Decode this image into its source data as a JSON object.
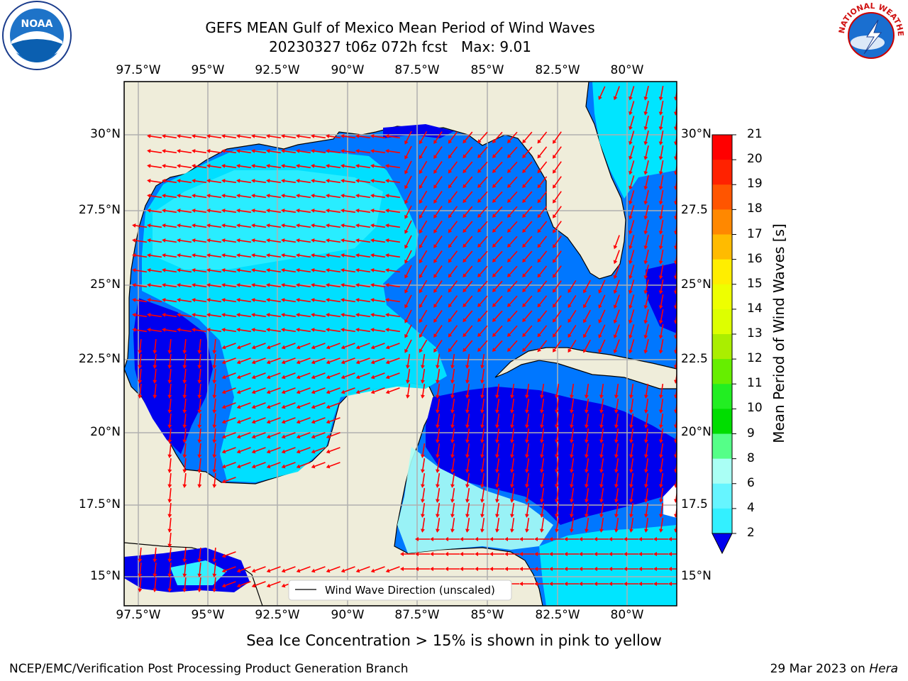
{
  "title_line1": "GEFS MEAN Gulf of Mexico Mean Period of Wind Waves",
  "title_line2": "20230327 t06z 072h fcst   Max: 9.01",
  "lon_ticks": [
    "97.5°W",
    "95°W",
    "92.5°W",
    "90°W",
    "87.5°W",
    "85°W",
    "82.5°W",
    "80°W"
  ],
  "lat_ticks_left": [
    "30°N",
    "27.5°N",
    "25°N",
    "22.5°N",
    "20°N",
    "17.5°N",
    "15°N"
  ],
  "lat_ticks_right": [
    "30°N",
    "27.5",
    "25°N",
    "22.5",
    "20°N",
    "17.5",
    "15°N"
  ],
  "legend_label": "Wind Wave Direction (unscaled)",
  "colorbar": {
    "label": "Mean Period of Wind Waves [s]",
    "ticks": [
      "2",
      "4",
      "6",
      "8",
      "9",
      "10",
      "11",
      "12",
      "13",
      "14",
      "15",
      "16",
      "17",
      "18",
      "19",
      "20",
      "21"
    ],
    "colors": [
      "#0077ff",
      "#00e5ff",
      "#33f0ff",
      "#66f5ff",
      "#aafff5",
      "#55ff88",
      "#22ee22",
      "#00dd00",
      "#66ee00",
      "#aaee00",
      "#ddff00",
      "#eeff00",
      "#ffee00",
      "#ffbb00",
      "#ff8800",
      "#ff5500",
      "#ff2200",
      "#ff0000"
    ],
    "extend_color": "#0000ee"
  },
  "ice_note": "Sea Ice Concentration > 15% is shown in pink to yellow",
  "footer_left": "NCEP/EMC/Verification Post Processing Product Generation Branch",
  "footer_right_date": "29 Mar 2023 on ",
  "footer_right_host": "Hera",
  "noaa_logo_text": "NOAA",
  "nws_logo_text": "NATIONAL WEATHER SERVICE",
  "colors": {
    "land": "#efedda",
    "water_light": "#00e5ff",
    "water_mid": "#0077ff",
    "water_dark": "#0000ee",
    "water_pale": "#aafff5",
    "arrow": "#ff0000",
    "grid": "#b0b0b0"
  }
}
